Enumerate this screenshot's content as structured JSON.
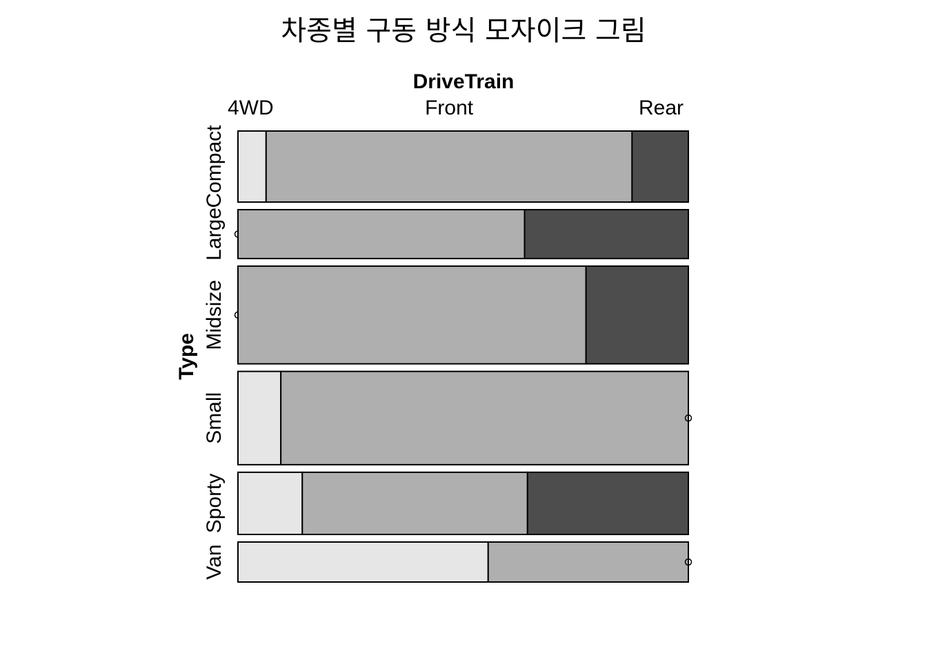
{
  "chart_data": {
    "type": "mosaic",
    "title": "차종별 구동 방식 모자이크 그림",
    "x_variable": "DriveTrain",
    "y_variable": "Type",
    "x_levels": [
      "4WD",
      "Front",
      "Rear"
    ],
    "y_levels": [
      "Compact",
      "Large",
      "Midsize",
      "Small",
      "Sporty",
      "Van"
    ],
    "counts": {
      "Compact": {
        "4WD": 1,
        "Front": 13,
        "Rear": 2
      },
      "Large": {
        "4WD": 0,
        "Front": 7,
        "Rear": 4
      },
      "Midsize": {
        "4WD": 0,
        "Front": 17,
        "Rear": 5
      },
      "Small": {
        "4WD": 2,
        "Front": 19,
        "Rear": 0
      },
      "Sporty": {
        "4WD": 2,
        "Front": 7,
        "Rear": 5
      },
      "Van": {
        "4WD": 5,
        "Front": 4,
        "Rear": 0
      }
    },
    "fill_colors": {
      "4WD": "#e6e6e6",
      "Front": "#afafaf",
      "Rear": "#4d4d4d"
    },
    "stroke_color": "#000000",
    "grid": false,
    "legend": "none"
  }
}
